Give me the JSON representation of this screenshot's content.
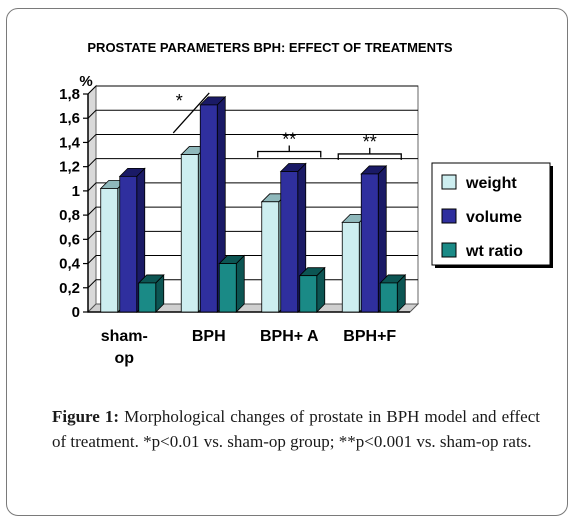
{
  "chart_data": {
    "type": "bar",
    "title": "PROSTATE PARAMETERS BPH: EFFECT OF TREATMENTS",
    "ylabel": "%",
    "xlabel": "",
    "ylim": [
      0,
      1.8
    ],
    "yticks": [
      "0",
      "0,2",
      "0,4",
      "0,6",
      "0,8",
      "1",
      "1,2",
      "1,4",
      "1,6",
      "1,8"
    ],
    "grid": true,
    "legend_position": "right",
    "categories": [
      [
        "sham-",
        "op"
      ],
      [
        "BPH"
      ],
      [
        "BPH+ A"
      ],
      [
        "BPH+F"
      ]
    ],
    "series": [
      {
        "name": "weight",
        "color": "#cdeef0",
        "side": "#8fb8bb",
        "values": [
          1.02,
          1.3,
          0.91,
          0.74
        ]
      },
      {
        "name": "volume",
        "color": "#2f2f9e",
        "side": "#1a1a66",
        "values": [
          1.12,
          1.71,
          1.16,
          1.14
        ]
      },
      {
        "name": "wt ratio",
        "color": "#1a8a86",
        "side": "#0c5553",
        "values": [
          0.24,
          0.4,
          0.3,
          0.24
        ]
      }
    ],
    "annotations": [
      {
        "text": "*",
        "group": 1
      },
      {
        "text": "**",
        "group": 2
      },
      {
        "text": "**",
        "group": 3
      }
    ]
  },
  "caption": {
    "label": "Figure 1:",
    "text": " Morphological changes of prostate in BPH model and effect of treatment. *p<0.01 vs. sham-op group; **p<0.001 vs. sham-op rats."
  }
}
